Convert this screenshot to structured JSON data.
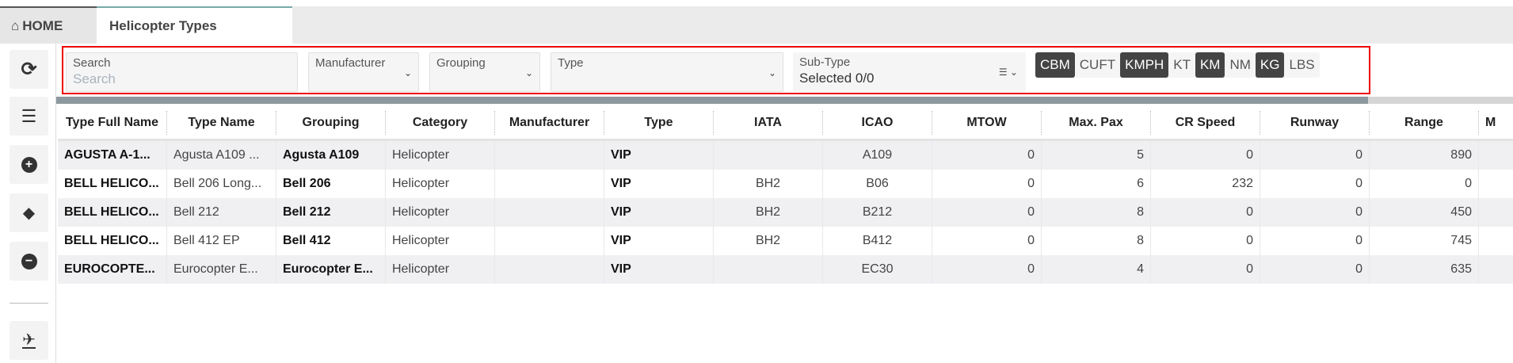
{
  "tabs": {
    "home": "HOME",
    "active": "Helicopter Types"
  },
  "filters": {
    "search": {
      "label": "Search",
      "placeholder": "Search"
    },
    "manufacturer": {
      "label": "Manufacturer"
    },
    "grouping": {
      "label": "Grouping"
    },
    "type": {
      "label": "Type"
    },
    "subtype": {
      "label": "Sub-Type",
      "value": "Selected 0/0"
    },
    "units": [
      {
        "label": "CBM",
        "active": true
      },
      {
        "label": "CUFT",
        "active": false
      },
      {
        "label": "KMPH",
        "active": true
      },
      {
        "label": "KT",
        "active": false
      },
      {
        "label": "KM",
        "active": true
      },
      {
        "label": "NM",
        "active": false
      },
      {
        "label": "KG",
        "active": true
      },
      {
        "label": "LBS",
        "active": false
      }
    ]
  },
  "sidebar": [
    "refresh-icon",
    "sliders-icon",
    "plus-circle-icon",
    "eraser-icon",
    "minus-circle-icon",
    "plane-departure-icon"
  ],
  "table": {
    "columns": [
      "Type Full Name",
      "Type Name",
      "Grouping",
      "Category",
      "Manufacturer",
      "Type",
      "IATA",
      "ICAO",
      "MTOW",
      "Max. Pax",
      "CR Speed",
      "Runway",
      "Range",
      "M"
    ],
    "rows": [
      [
        "AGUSTA A-1...",
        "Agusta A109 ...",
        "Agusta A109",
        "Helicopter",
        "",
        "VIP",
        "",
        "A109",
        "0",
        "5",
        "0",
        "0",
        "890",
        ""
      ],
      [
        "BELL HELICO...",
        "Bell 206 Long...",
        "Bell 206",
        "Helicopter",
        "",
        "VIP",
        "BH2",
        "B06",
        "0",
        "6",
        "232",
        "0",
        "0",
        ""
      ],
      [
        "BELL HELICO...",
        "Bell 212",
        "Bell 212",
        "Helicopter",
        "",
        "VIP",
        "BH2",
        "B212",
        "0",
        "8",
        "0",
        "0",
        "450",
        ""
      ],
      [
        "BELL HELICO...",
        "Bell 412 EP",
        "Bell 412",
        "Helicopter",
        "",
        "VIP",
        "BH2",
        "B412",
        "0",
        "8",
        "0",
        "0",
        "745",
        ""
      ],
      [
        "EUROCOPTE...",
        "Eurocopter E...",
        "Eurocopter E...",
        "Helicopter",
        "",
        "VIP",
        "",
        "EC30",
        "0",
        "4",
        "0",
        "0",
        "635",
        ""
      ]
    ]
  }
}
